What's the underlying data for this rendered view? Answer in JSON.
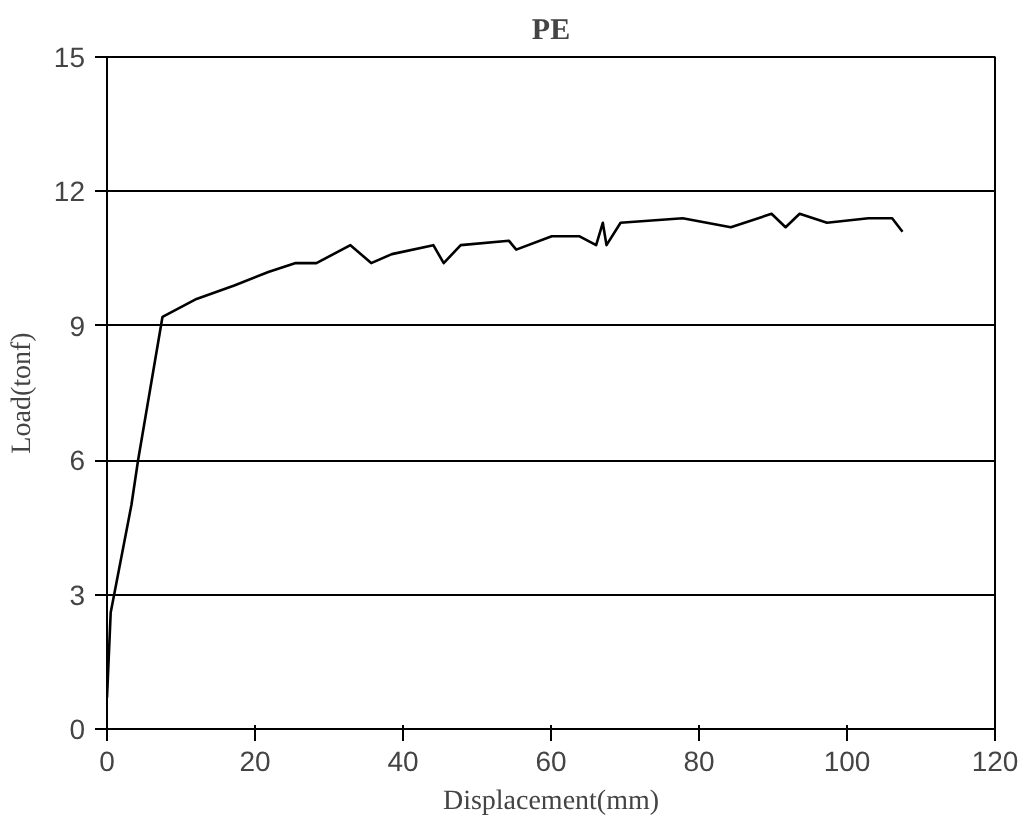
{
  "chart_data": {
    "type": "line",
    "title": "PE",
    "xlabel": "Displacement(mm)",
    "ylabel": "Load(tonf)",
    "x": [
      0,
      0.5,
      3.3,
      4.2,
      7.5,
      12.1,
      17.2,
      21.8,
      25.5,
      28.3,
      32.9,
      35.7,
      38.5,
      44.1,
      45.5,
      47.8,
      54.3,
      55.3,
      60.1,
      63.8,
      66.1,
      67.0,
      67.5,
      69.4,
      77.8,
      84.3,
      89.8,
      91.7,
      93.6,
      97.3,
      102.9,
      106.1,
      107.5
    ],
    "series": [
      {
        "color": "#000000",
        "values": [
          0.7,
          2.6,
          5.0,
          6.0,
          9.2,
          9.6,
          9.9,
          10.2,
          10.4,
          10.4,
          10.8,
          10.4,
          10.6,
          10.8,
          10.4,
          10.8,
          10.9,
          10.7,
          11.0,
          11.0,
          10.8,
          11.3,
          10.8,
          11.3,
          11.4,
          11.2,
          11.5,
          11.2,
          11.5,
          11.3,
          11.4,
          11.4,
          11.1
        ]
      }
    ],
    "xlim": [
      0,
      120
    ],
    "xticks": [
      0,
      20,
      40,
      60,
      80,
      100,
      120
    ],
    "ylim": [
      0,
      15
    ],
    "yticks": [
      0,
      3,
      6,
      9,
      12,
      15
    ],
    "grid": "y",
    "marker": "none",
    "line_style": "solid"
  }
}
